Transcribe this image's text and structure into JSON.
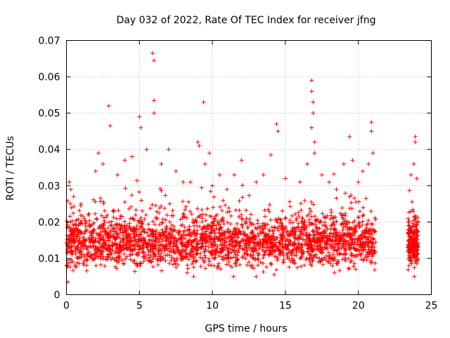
{
  "chart_data": {
    "type": "scatter",
    "title": "Day 032 of 2022, Rate Of TEC Index for receiver jfng",
    "xlabel": "GPS time / hours",
    "ylabel": "ROTI / TECUs",
    "xlim": [
      0,
      25
    ],
    "ylim": [
      0,
      0.07
    ],
    "xticks": [
      0,
      5,
      10,
      15,
      20,
      25
    ],
    "xtick_labels": [
      "0",
      "5",
      "10",
      "15",
      "20",
      "25"
    ],
    "yticks": [
      0,
      0.01,
      0.02,
      0.03,
      0.04,
      0.05,
      0.06,
      0.07
    ],
    "ytick_labels": [
      "0",
      "0.01",
      "0.02",
      "0.03",
      "0.04",
      "0.05",
      "0.06",
      "0.07"
    ],
    "grid": true,
    "marker": "plus",
    "color": "#ff0000",
    "series": [
      {
        "points": [
          [
            0.1,
            0.0035
          ],
          [
            0.2,
            0.031
          ],
          [
            0.3,
            0.029
          ],
          [
            0.5,
            0.027
          ],
          [
            1.0,
            0.025
          ],
          [
            1.5,
            0.022
          ],
          [
            2.0,
            0.034
          ],
          [
            2.2,
            0.039
          ],
          [
            2.5,
            0.036
          ],
          [
            2.9,
            0.052
          ],
          [
            3.0,
            0.0465
          ],
          [
            3.5,
            0.033
          ],
          [
            4.0,
            0.037
          ],
          [
            4.5,
            0.038
          ],
          [
            5.0,
            0.049
          ],
          [
            5.1,
            0.046
          ],
          [
            5.5,
            0.04
          ],
          [
            5.9,
            0.0665
          ],
          [
            6.0,
            0.0645
          ],
          [
            6.0,
            0.0535
          ],
          [
            6.0,
            0.05
          ],
          [
            6.5,
            0.036
          ],
          [
            7.0,
            0.04
          ],
          [
            7.5,
            0.034
          ],
          [
            8.0,
            0.031
          ],
          [
            8.5,
            0.031
          ],
          [
            9.0,
            0.042
          ],
          [
            9.1,
            0.041
          ],
          [
            9.4,
            0.053
          ],
          [
            9.5,
            0.036
          ],
          [
            9.8,
            0.039
          ],
          [
            10.0,
            0.03
          ],
          [
            10.5,
            0.033
          ],
          [
            11.0,
            0.029
          ],
          [
            11.5,
            0.033
          ],
          [
            12.0,
            0.037
          ],
          [
            13.0,
            0.031
          ],
          [
            13.5,
            0.033
          ],
          [
            14.0,
            0.0385
          ],
          [
            14.4,
            0.047
          ],
          [
            14.5,
            0.045
          ],
          [
            15.0,
            0.032
          ],
          [
            16.0,
            0.031
          ],
          [
            16.5,
            0.036
          ],
          [
            16.8,
            0.059
          ],
          [
            16.8,
            0.056
          ],
          [
            16.9,
            0.053
          ],
          [
            16.9,
            0.05
          ],
          [
            16.8,
            0.046
          ],
          [
            17.0,
            0.042
          ],
          [
            17.0,
            0.039
          ],
          [
            17.5,
            0.033
          ],
          [
            18.0,
            0.031
          ],
          [
            18.5,
            0.029
          ],
          [
            19.0,
            0.036
          ],
          [
            19.4,
            0.0435
          ],
          [
            19.6,
            0.037
          ],
          [
            20.0,
            0.031
          ],
          [
            20.3,
            0.034
          ],
          [
            20.7,
            0.036
          ],
          [
            20.9,
            0.0475
          ],
          [
            20.9,
            0.045
          ],
          [
            21.0,
            0.039
          ],
          [
            23.6,
            0.033
          ],
          [
            23.8,
            0.036
          ],
          [
            23.9,
            0.0435
          ],
          [
            23.9,
            0.042
          ],
          [
            24.0,
            0.032
          ]
        ]
      }
    ]
  }
}
